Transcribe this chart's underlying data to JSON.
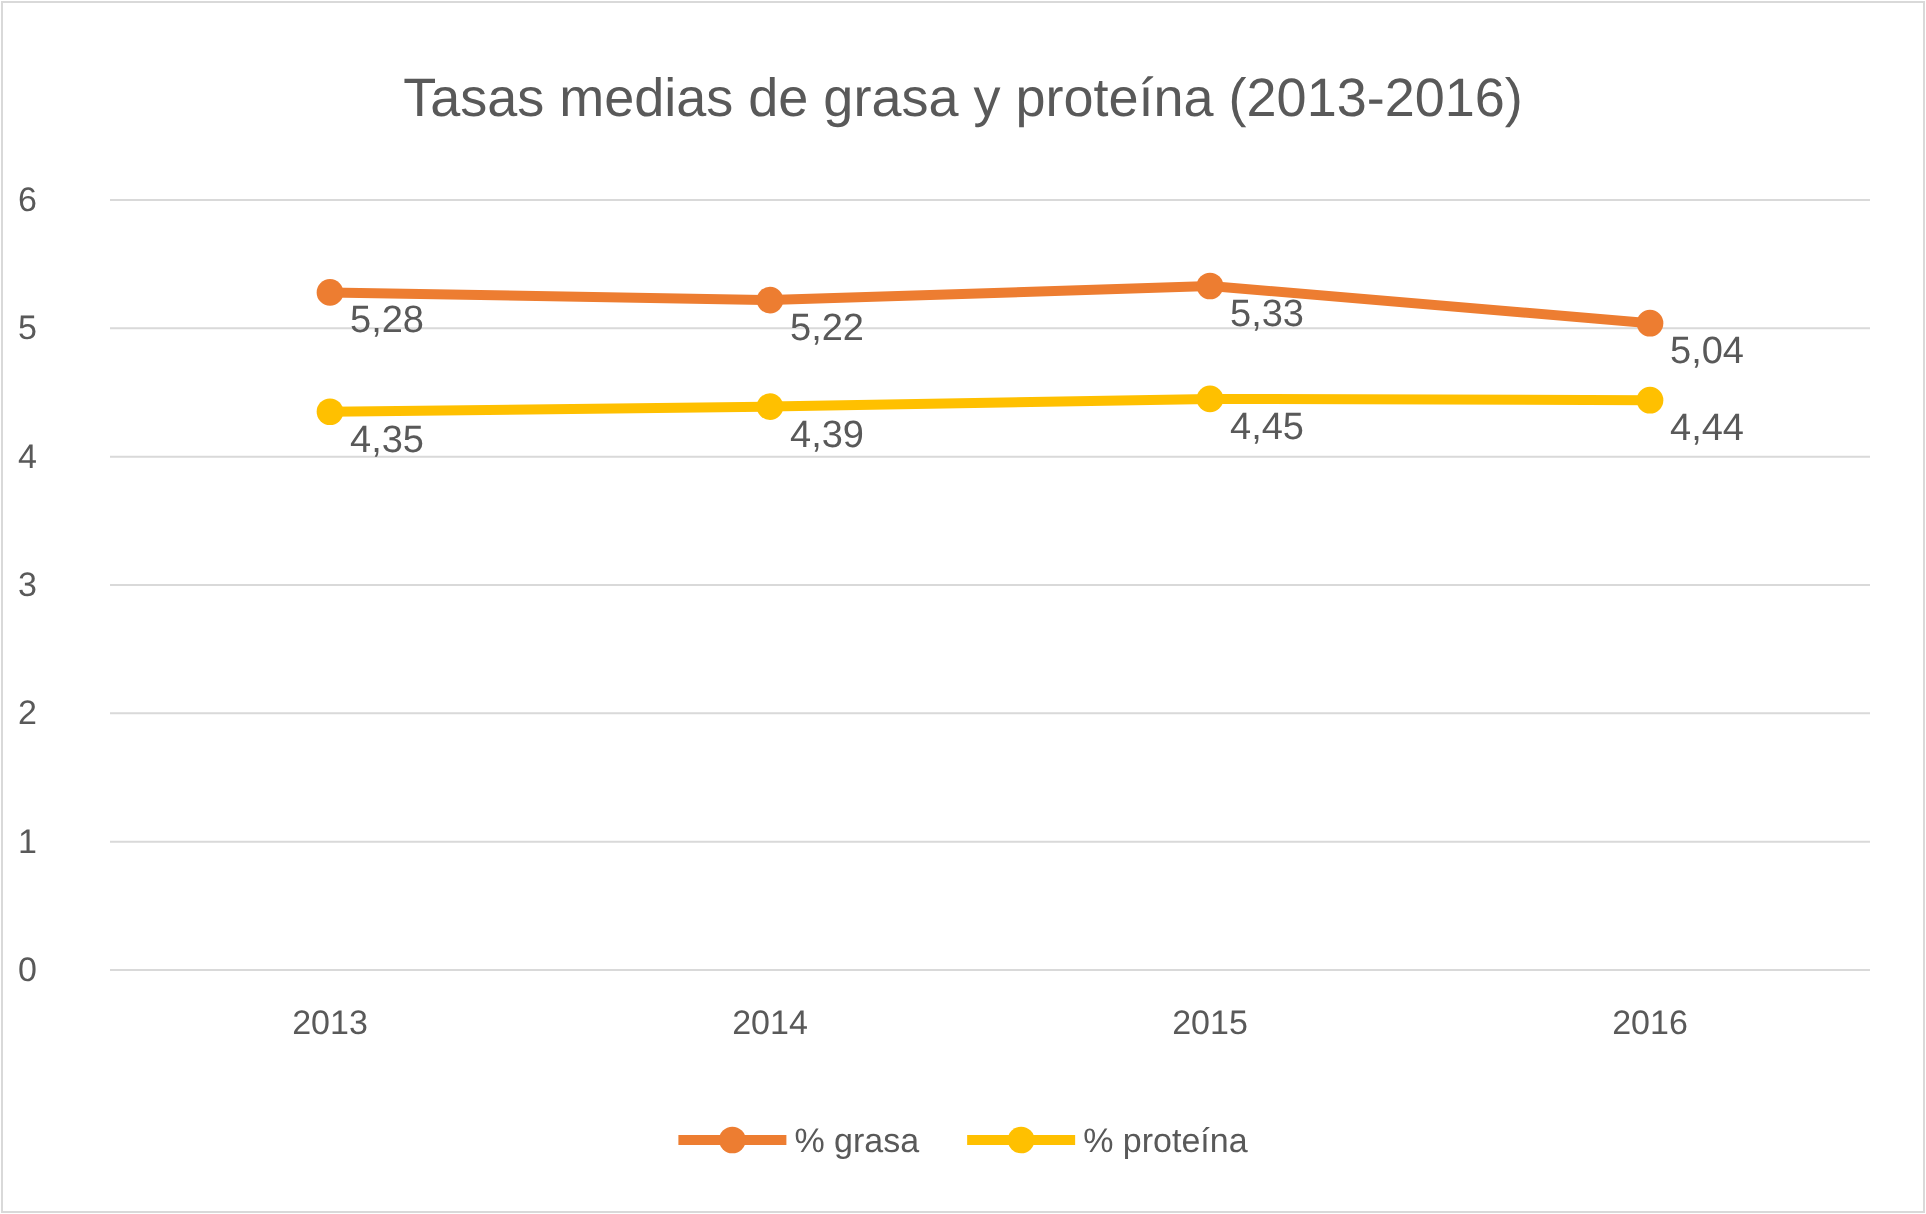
{
  "chart_data": {
    "type": "line",
    "title": "Tasas medias de grasa y proteína (2013-2016)",
    "categories": [
      "2013",
      "2014",
      "2015",
      "2016"
    ],
    "series": [
      {
        "name": "% grasa",
        "color": "#ed7d31",
        "values": [
          5.28,
          5.22,
          5.33,
          5.04
        ],
        "value_labels": [
          "5,28",
          "5,22",
          "5,33",
          "5,04"
        ]
      },
      {
        "name": "% proteína",
        "color": "#ffc000",
        "values": [
          4.35,
          4.39,
          4.45,
          4.44
        ],
        "value_labels": [
          "4,35",
          "4,39",
          "4,45",
          "4,44"
        ]
      }
    ],
    "ylim": [
      0,
      6
    ],
    "yticks": [
      0,
      1,
      2,
      3,
      4,
      5,
      6
    ],
    "grid": "y",
    "legend": "bottom",
    "marker": "circle",
    "line_style": "solid"
  }
}
